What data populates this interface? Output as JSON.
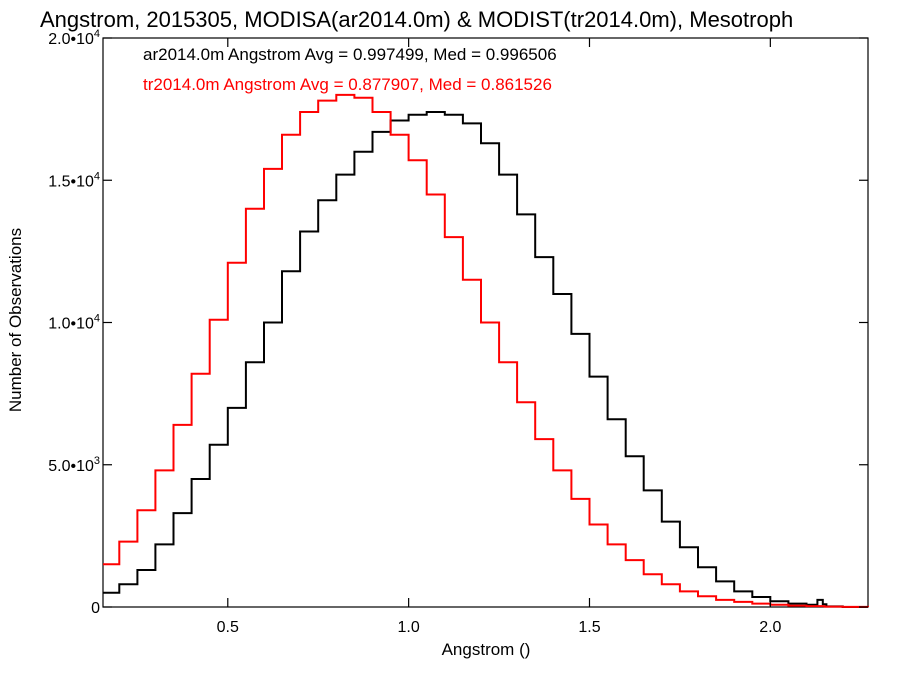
{
  "chart_data": {
    "type": "line",
    "title": "Angstrom, 2015305, MODISA(ar2014.0m) & MODIST(tr2014.0m), Mesotroph",
    "xlabel": "Angstrom ()",
    "ylabel": "Number of Observations",
    "xlim": [
      0.155,
      2.27
    ],
    "ylim": [
      0,
      20000
    ],
    "x_ticks": [
      {
        "value": 0.5,
        "label": "0.5"
      },
      {
        "value": 1.0,
        "label": "1.0"
      },
      {
        "value": 1.5,
        "label": "1.5"
      },
      {
        "value": 2.0,
        "label": "2.0"
      }
    ],
    "y_ticks": [
      {
        "value": 0,
        "label": "0",
        "exp": ""
      },
      {
        "value": 5000,
        "label": "5.0•10",
        "exp": "3"
      },
      {
        "value": 10000,
        "label": "1.0•10",
        "exp": "4"
      },
      {
        "value": 15000,
        "label": "1.5•10",
        "exp": "4"
      },
      {
        "value": 20000,
        "label": "2.0•10",
        "exp": "4"
      }
    ],
    "grid": false,
    "step": true,
    "series": [
      {
        "name": "ar2014.0m Angstrom Avg = 0.997499, Med = 0.996506",
        "color": "#000000",
        "x": [
          0.155,
          0.2,
          0.25,
          0.3,
          0.35,
          0.4,
          0.45,
          0.5,
          0.55,
          0.6,
          0.65,
          0.7,
          0.75,
          0.8,
          0.85,
          0.9,
          0.95,
          1.0,
          1.05,
          1.1,
          1.15,
          1.2,
          1.25,
          1.3,
          1.35,
          1.4,
          1.45,
          1.5,
          1.55,
          1.6,
          1.65,
          1.7,
          1.75,
          1.8,
          1.85,
          1.9,
          1.95,
          2.0,
          2.05,
          2.1,
          2.13,
          2.145,
          2.155,
          2.2,
          2.27
        ],
        "values": [
          500,
          800,
          1300,
          2200,
          3300,
          4500,
          5700,
          7000,
          8600,
          10000,
          11800,
          13200,
          14300,
          15200,
          16000,
          16700,
          17100,
          17300,
          17400,
          17300,
          17000,
          16300,
          15200,
          13800,
          12300,
          11000,
          9600,
          8100,
          6600,
          5300,
          4100,
          3000,
          2100,
          1400,
          900,
          550,
          350,
          200,
          120,
          80,
          250,
          100,
          20,
          0,
          0
        ]
      },
      {
        "name": "tr2014.0m Angstrom Avg = 0.877907, Med = 0.861526",
        "color": "#ff0000",
        "x": [
          0.155,
          0.2,
          0.25,
          0.3,
          0.35,
          0.4,
          0.45,
          0.5,
          0.55,
          0.6,
          0.65,
          0.7,
          0.75,
          0.8,
          0.85,
          0.9,
          0.95,
          1.0,
          1.05,
          1.1,
          1.15,
          1.2,
          1.25,
          1.3,
          1.35,
          1.4,
          1.45,
          1.5,
          1.55,
          1.6,
          1.65,
          1.7,
          1.75,
          1.8,
          1.85,
          1.9,
          1.95,
          2.0,
          2.05,
          2.1,
          2.15,
          2.2,
          2.27
        ],
        "values": [
          1500,
          2300,
          3400,
          4800,
          6400,
          8200,
          10100,
          12100,
          14000,
          15400,
          16600,
          17400,
          17800,
          18000,
          17900,
          17400,
          16600,
          15700,
          14500,
          13000,
          11500,
          10000,
          8600,
          7200,
          5900,
          4800,
          3800,
          2900,
          2200,
          1650,
          1150,
          800,
          550,
          380,
          250,
          180,
          120,
          80,
          50,
          30,
          15,
          5,
          0
        ]
      }
    ],
    "legend": {
      "placement": "top-left",
      "position_style": "text-labels"
    }
  }
}
